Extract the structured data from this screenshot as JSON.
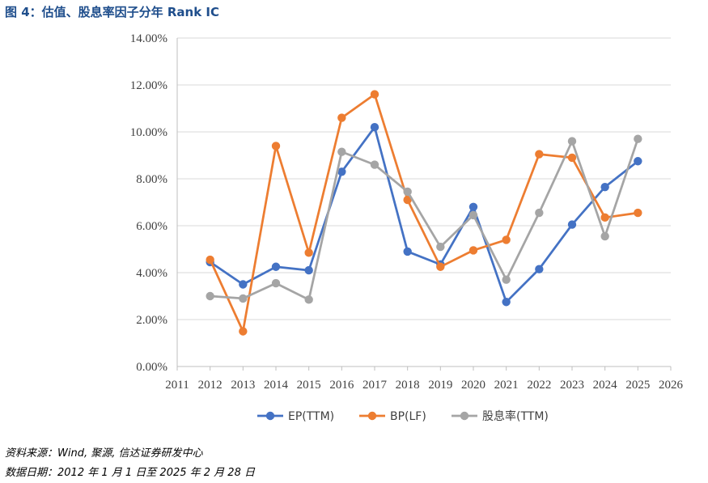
{
  "figure": {
    "title": "图 4：估值、股息率因子分年 Rank IC",
    "source_note": "资料来源：Wind, 聚源, 信达证券研发中心",
    "date_note": "数据日期：2012 年 1 月 1 日至 2025 年 2 月 28 日"
  },
  "chart_data": {
    "type": "line",
    "title": "",
    "xlabel": "",
    "ylabel": "",
    "x": [
      2012,
      2013,
      2014,
      2015,
      2016,
      2017,
      2018,
      2019,
      2020,
      2021,
      2022,
      2023,
      2024,
      2025
    ],
    "x_ticks": [
      "2011",
      "2012",
      "2013",
      "2014",
      "2015",
      "2016",
      "2017",
      "2018",
      "2019",
      "2020",
      "2021",
      "2022",
      "2023",
      "2024",
      "2025",
      "2026"
    ],
    "xlim": [
      2011,
      2026
    ],
    "ylim": [
      0,
      14
    ],
    "y_ticks": [
      "0.00%",
      "2.00%",
      "4.00%",
      "6.00%",
      "8.00%",
      "10.00%",
      "12.00%",
      "14.00%"
    ],
    "y_tick_values": [
      0,
      2,
      4,
      6,
      8,
      10,
      12,
      14
    ],
    "grid": "horizontal",
    "legend_position": "bottom",
    "series": [
      {
        "name": "EP(TTM)",
        "color": "#4472c4",
        "values": [
          4.45,
          3.5,
          4.25,
          4.1,
          8.3,
          10.2,
          4.9,
          4.35,
          6.8,
          2.75,
          4.15,
          6.05,
          7.65,
          8.75
        ]
      },
      {
        "name": "BP(LF)",
        "color": "#ed7d31",
        "values": [
          4.55,
          1.5,
          9.4,
          4.85,
          10.6,
          11.6,
          7.1,
          4.25,
          4.95,
          5.4,
          9.05,
          8.9,
          6.35,
          6.55
        ]
      },
      {
        "name": "股息率(TTM)",
        "color": "#a5a5a5",
        "values": [
          3.0,
          2.9,
          3.55,
          2.85,
          9.15,
          8.6,
          7.45,
          5.1,
          6.45,
          3.7,
          6.55,
          9.6,
          5.55,
          9.7
        ]
      }
    ]
  }
}
